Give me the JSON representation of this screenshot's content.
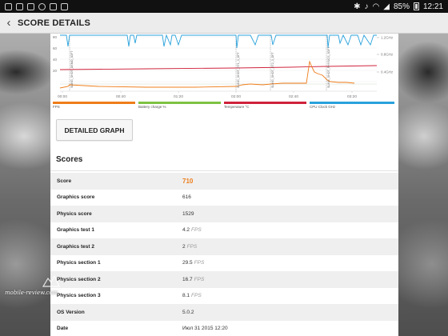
{
  "status_bar": {
    "time": "12:21",
    "battery": "85%"
  },
  "header": {
    "title": "SCORE DETAILS"
  },
  "chart_data": {
    "type": "line",
    "x_ticks": [
      "00:00",
      "00:40",
      "01:20",
      "02:00",
      "02:40",
      "03:20"
    ],
    "y_left_ticks": [
      "80",
      "60",
      "40",
      "20"
    ],
    "y_right_ticks": [
      "1.2GHz",
      "0.8GHz",
      "0.4GHz"
    ],
    "phase_markers": [
      "SLING_SHOT_DEMO_3DFT",
      "SLING_SHOT_GT1_3_DFT",
      "SLING_SHOT_GT2_3_DFT",
      "SLING_SHOT_PHYSICS_3DFT"
    ],
    "series": [
      {
        "name": "FPS",
        "color": "#ef7d1a"
      },
      {
        "name": "Battery charge %",
        "color": "#7dc242"
      },
      {
        "name": "Temperature °C",
        "color": "#d0223b"
      },
      {
        "name": "CPU Clock GHz",
        "color": "#2aa2dc"
      }
    ]
  },
  "detailed_graph_label": "DETAILED GRAPH",
  "scores_heading": "Scores",
  "scores": [
    {
      "label": "Score",
      "value": "710",
      "unit": "",
      "highlight": true
    },
    {
      "label": "Graphics score",
      "value": "616",
      "unit": ""
    },
    {
      "label": "Physics score",
      "value": "1529",
      "unit": ""
    },
    {
      "label": "Graphics test 1",
      "value": "4.2",
      "unit": "FPS"
    },
    {
      "label": "Graphics test 2",
      "value": "2",
      "unit": "FPS"
    },
    {
      "label": "Physics section 1",
      "value": "29.5",
      "unit": "FPS"
    },
    {
      "label": "Physics section 2",
      "value": "16.7",
      "unit": "FPS"
    },
    {
      "label": "Physics section 3",
      "value": "8.1",
      "unit": "FPS"
    },
    {
      "label": "OS Version",
      "value": "5.0.2",
      "unit": ""
    },
    {
      "label": "Date",
      "value": "Июл 31 2015 12:20",
      "unit": ""
    }
  ],
  "watermark": "mobile-review.com"
}
